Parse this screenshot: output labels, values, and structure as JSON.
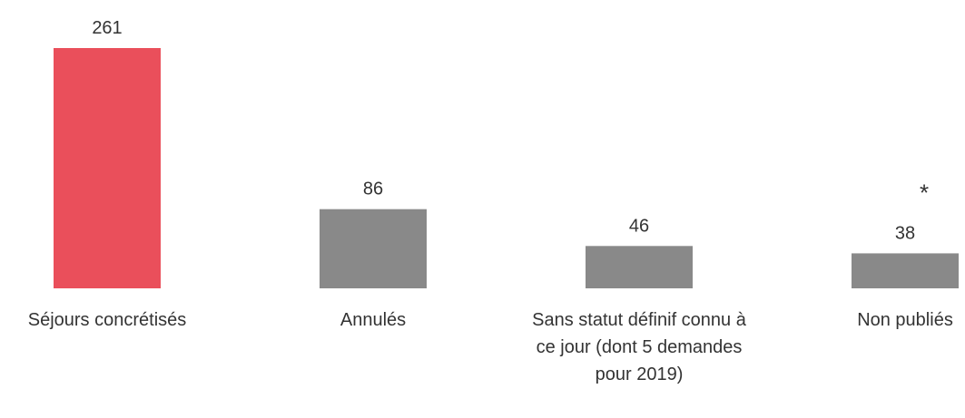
{
  "chart_data": {
    "type": "bar",
    "categories": [
      "Séjours concrétisés",
      "Annulés",
      "Sans statut définif connu à ce jour (dont 5 demandes pour 2019)",
      "Non publiés"
    ],
    "values": [
      261,
      86,
      46,
      38
    ],
    "colors": [
      "#ea4f5b",
      "#898989",
      "#898989",
      "#898989"
    ],
    "annotations": [
      {
        "text": "*"
      }
    ]
  }
}
